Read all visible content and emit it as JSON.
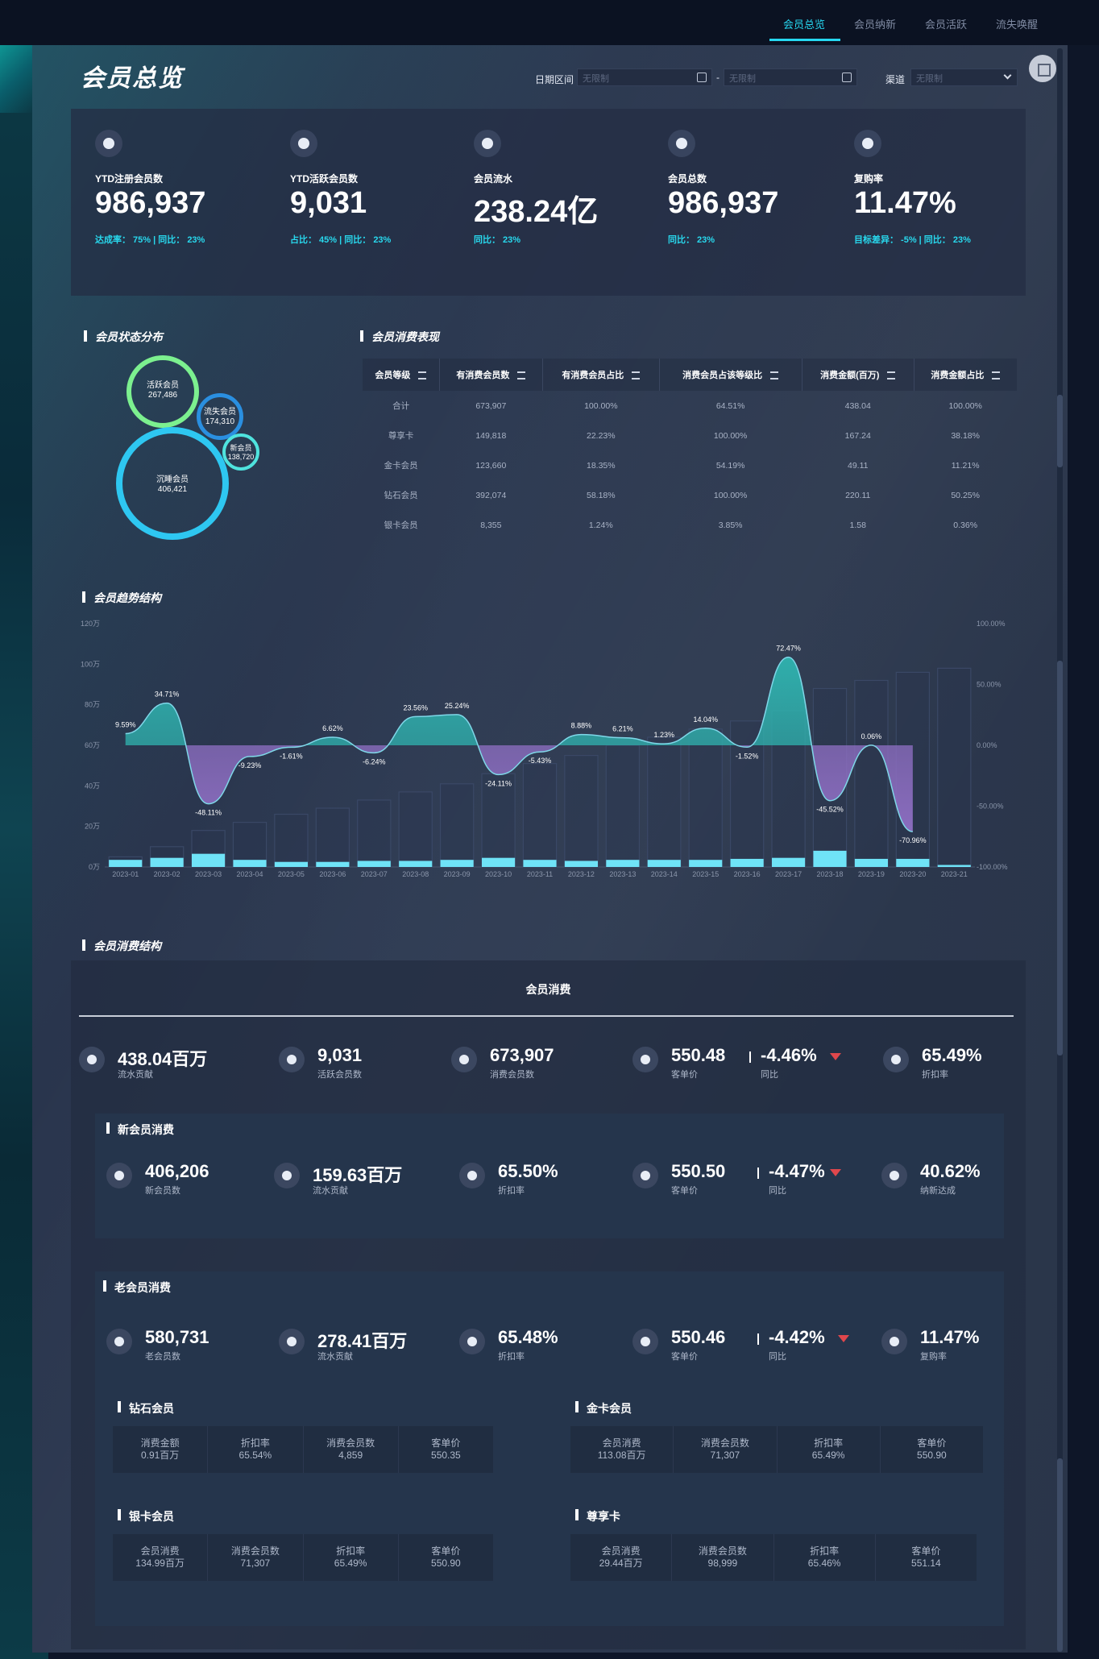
{
  "nav": {
    "tabs": [
      {
        "label": "会员总览",
        "active": true
      },
      {
        "label": "会员纳新",
        "active": false
      },
      {
        "label": "会员活跃",
        "active": false
      },
      {
        "label": "流失唤醒",
        "active": false
      }
    ]
  },
  "header": {
    "title": "会员总览",
    "date_label": "日期区间",
    "date_from_placeholder": "无限制",
    "date_sep": "-",
    "date_to_placeholder": "无限制",
    "channel_label": "渠道",
    "channel_value": "无限制"
  },
  "kpis": [
    {
      "icon": "member-icon",
      "label": "YTD注册会员数",
      "value": "986,937",
      "sub": "达成率： 75%    |  同比： 23%"
    },
    {
      "icon": "users-icon",
      "label": "YTD活跃会员数",
      "value": "9,031",
      "sub": "占比： 45%    |  同比： 23%"
    },
    {
      "icon": "flow-icon",
      "label": "会员流水",
      "value": "238.24亿",
      "sub": "同比： 23%"
    },
    {
      "icon": "vip-icon",
      "label": "会员总数",
      "value": "986,937",
      "sub": "同比： 23%"
    },
    {
      "icon": "repurchase-icon",
      "label": "复购率",
      "value": "11.47%",
      "sub": "目标差异： -5%    |  同比： 23%"
    }
  ],
  "status": {
    "title": "会员状态分布",
    "bubbles": [
      {
        "name": "活跃会员",
        "value": "267,486"
      },
      {
        "name": "流失会员",
        "value": "174,310"
      },
      {
        "name": "新会员",
        "value": "138,720"
      },
      {
        "name": "沉睡会员",
        "value": "406,421"
      }
    ]
  },
  "consume_table": {
    "title": "会员消费表现",
    "headers": [
      "会员等级",
      "有消费会员数",
      "有消费会员占比",
      "消费会员占该等级比",
      "消费金额(百万)",
      "消费金额占比"
    ],
    "rows": [
      [
        "合计",
        "673,907",
        "100.00%",
        "64.51%",
        "438.04",
        "100.00%"
      ],
      [
        "尊享卡",
        "149,818",
        "22.23%",
        "100.00%",
        "167.24",
        "38.18%"
      ],
      [
        "金卡会员",
        "123,660",
        "18.35%",
        "54.19%",
        "49.11",
        "11.21%"
      ],
      [
        "钻石会员",
        "392,074",
        "58.18%",
        "100.00%",
        "220.11",
        "50.25%"
      ],
      [
        "银卡会员",
        "8,355",
        "1.24%",
        "3.85%",
        "1.58",
        "0.36%"
      ]
    ]
  },
  "chart_data": {
    "type": "bar",
    "title": "会员趋势结构",
    "categories": [
      "2023-01",
      "2023-02",
      "2023-03",
      "2023-04",
      "2023-05",
      "2023-06",
      "2023-07",
      "2023-08",
      "2023-09",
      "2023-10",
      "2023-11",
      "2023-12",
      "2023-13",
      "2023-14",
      "2023-15",
      "2023-16",
      "2023-17",
      "2023-18",
      "2023-19",
      "2023-20",
      "2023-21"
    ],
    "y_left_ticks": [
      "120万",
      "100万",
      "80万",
      "60万",
      "40万",
      "20万",
      "0万"
    ],
    "y_right_ticks": [
      "100.00%",
      "50.00%",
      "0.00%",
      "-50.00%",
      "-100.00%"
    ],
    "ylim_left": [
      0,
      120
    ],
    "ylim_right": [
      -100,
      100
    ],
    "series": [
      {
        "values": [
          5,
          10,
          18,
          22,
          26,
          29,
          33,
          37,
          41,
          46,
          51,
          55,
          60,
          64,
          68,
          72,
          77,
          88,
          92,
          96,
          98
        ]
      },
      {
        "values": [
          3.5,
          4.5,
          6.5,
          3.5,
          2.5,
          2.5,
          3,
          3,
          3.5,
          4.5,
          3.5,
          3,
          3.5,
          3.5,
          3.5,
          4,
          4.5,
          8,
          4,
          4,
          1
        ]
      },
      {
        "values": [
          9.59,
          34.71,
          -48.11,
          -9.23,
          -1.61,
          6.62,
          -6.24,
          23.56,
          25.24,
          -24.11,
          -5.43,
          8.88,
          6.21,
          1.23,
          14.04,
          -1.52,
          72.47,
          -45.52,
          0.06,
          -70.96,
          null
        ]
      }
    ],
    "point_labels": [
      "9.59%",
      "34.71%",
      "-48.11%",
      "-9.23%",
      "-1.61%",
      "6.62%",
      "-6.24%",
      "23.56%",
      "25.24%",
      "-24.11%",
      "-5.43%",
      "8.88%",
      "6.21%",
      "1.23%",
      "14.04%",
      "-1.52%",
      "72.47%",
      "-45.52%",
      "0.06%",
      "-70.96%"
    ],
    "colors": {
      "bar_total": "#3a4866",
      "bar_new": "#6fe3f7",
      "area_pos": "#2fb4b0",
      "area_neg": "#8f6fc4"
    }
  },
  "consume": {
    "section_title": "会员消费结构",
    "title": "会员消费",
    "top": [
      {
        "value": "438.04百万",
        "label": "流水贡献"
      },
      {
        "value": "9,031",
        "label": "活跃会员数"
      },
      {
        "value": "673,907",
        "label": "消费会员数"
      },
      {
        "value": "550.48",
        "label": "客单价"
      },
      {
        "value": "-4.46%",
        "label": "同比"
      },
      {
        "value": "65.49%",
        "label": "折扣率"
      }
    ],
    "new": {
      "title": "新会员消费",
      "stats": [
        {
          "value": "406,206",
          "label": "新会员数"
        },
        {
          "value": "159.63百万",
          "label": "流水贡献"
        },
        {
          "value": "65.50%",
          "label": "折扣率"
        },
        {
          "value": "550.50",
          "label": "客单价"
        },
        {
          "value": "-4.47%",
          "label": "同比"
        },
        {
          "value": "40.62%",
          "label": "纳新达成"
        }
      ]
    },
    "old": {
      "title": "老会员消费",
      "stats": [
        {
          "value": "580,731",
          "label": "老会员数"
        },
        {
          "value": "278.41百万",
          "label": "流水贡献"
        },
        {
          "value": "65.48%",
          "label": "折扣率"
        },
        {
          "value": "550.46",
          "label": "客单价"
        },
        {
          "value": "-4.42%",
          "label": "同比"
        },
        {
          "value": "11.47%",
          "label": "复购率"
        }
      ]
    },
    "tiers": [
      {
        "title": "钻石会员",
        "cells": [
          [
            "消费金额",
            "0.91百万"
          ],
          [
            "折扣率",
            "65.54%"
          ],
          [
            "消费会员数",
            "4,859"
          ],
          [
            "客单价",
            "550.35"
          ]
        ]
      },
      {
        "title": "金卡会员",
        "cells": [
          [
            "会员消费",
            "113.08百万"
          ],
          [
            "消费会员数",
            "71,307"
          ],
          [
            "折扣率",
            "65.49%"
          ],
          [
            "客单价",
            "550.90"
          ]
        ]
      },
      {
        "title": "银卡会员",
        "cells": [
          [
            "会员消费",
            "134.99百万"
          ],
          [
            "消费会员数",
            "71,307"
          ],
          [
            "折扣率",
            "65.49%"
          ],
          [
            "客单价",
            "550.90"
          ]
        ]
      },
      {
        "title": "尊享卡",
        "cells": [
          [
            "会员消费",
            "29.44百万"
          ],
          [
            "消费会员数",
            "98,999"
          ],
          [
            "折扣率",
            "65.46%"
          ],
          [
            "客单价",
            "551.14"
          ]
        ]
      }
    ]
  }
}
